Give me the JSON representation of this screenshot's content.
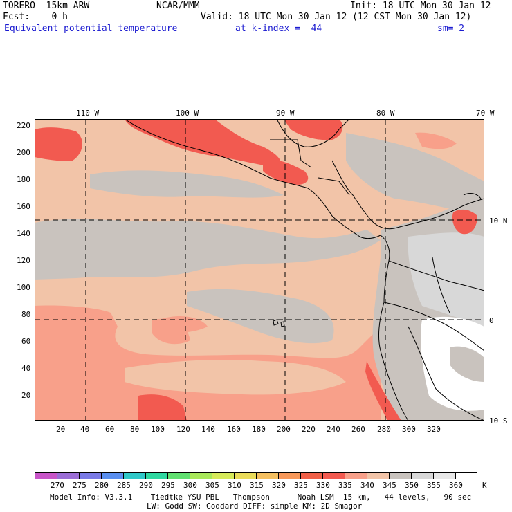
{
  "header": {
    "model": "TORERO  15km ARW",
    "center": "NCAR/MMM",
    "init": "Init: 18 UTC Mon 30 Jan 12",
    "fcst": "Fcst:    0 h",
    "valid": "Valid: 18 UTC Mon 30 Jan 12 (12 CST Mon 30 Jan 12)",
    "field": "Equivalent potential temperature",
    "level": "at k-index =  44",
    "smoothing": "sm= 2"
  },
  "map": {
    "lon_labels": [
      "110 W",
      "100 W",
      "90 W",
      "80 W",
      "70 W"
    ],
    "lat_labels": [
      "10 N",
      "0",
      "10 S"
    ],
    "y_ticks": [
      "220",
      "200",
      "180",
      "160",
      "140",
      "120",
      "100",
      "80",
      "60",
      "40",
      "20"
    ],
    "x_ticks": [
      "20",
      "40",
      "60",
      "80",
      "100",
      "120",
      "140",
      "160",
      "180",
      "200",
      "220",
      "240",
      "260",
      "280",
      "300",
      "320"
    ]
  },
  "legend": {
    "units": "K",
    "labels": [
      "270",
      "275",
      "280",
      "285",
      "290",
      "295",
      "300",
      "305",
      "310",
      "315",
      "320",
      "325",
      "330",
      "335",
      "340",
      "345",
      "350",
      "355",
      "360"
    ],
    "colors": [
      "#c855c8",
      "#9b6dd6",
      "#7a7ae6",
      "#5a8ff0",
      "#2fc8c8",
      "#2ed8a0",
      "#60e070",
      "#a8e85a",
      "#d6ea5a",
      "#eadc5a",
      "#f5c060",
      "#f7985a",
      "#f06048",
      "#f25a50",
      "#f8a08a",
      "#f2c4a8",
      "#c9c3be",
      "#d8d8d8",
      "#e8e8e8",
      "#ffffff"
    ]
  },
  "footer": {
    "line1": "Model Info: V3.3.1    Tiedtke YSU PBL   Thompson      Noah LSM  15 km,   44 levels,   90 sec",
    "line2": "LW: Godd SW: Goddard DIFF: simple KM: 2D Smagor"
  }
}
